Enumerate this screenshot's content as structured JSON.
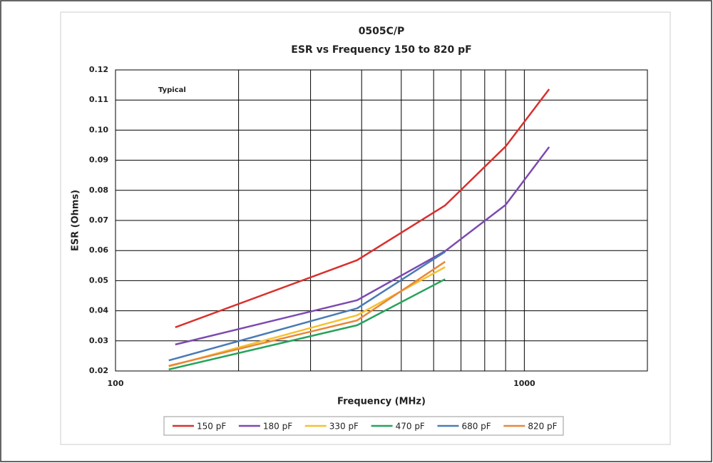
{
  "chart_data": {
    "type": "line",
    "title": "0505C/P",
    "subtitle": "ESR vs Frequency 150 to 820 pF",
    "annotation": "Typical",
    "x_label": "Frequency (MHz)",
    "y_label": "ESR (Ohms)",
    "log_x": true,
    "grid": true,
    "legend": "bottom",
    "xlim": [
      100,
      2000
    ],
    "xticks": [
      100,
      1000
    ],
    "xminor": [
      200,
      300,
      400,
      500,
      600,
      700,
      800,
      900
    ],
    "ylim": [
      0.02,
      0.12
    ],
    "yticks": [
      0.02,
      0.03,
      0.04,
      0.05,
      0.06,
      0.07,
      0.08,
      0.09,
      {
        "value": 0.1,
        "label": "0.10"
      },
      0.11,
      0.12
    ],
    "series": [
      {
        "name": "150 pF",
        "color": "#d9302c",
        "x": [
          140,
          390,
          640,
          900,
          1150
        ],
        "values": [
          0.0345,
          0.0568,
          0.075,
          0.0946,
          0.1136
        ]
      },
      {
        "name": "180 pF",
        "color": "#7c4ab0",
        "x": [
          140,
          390,
          640,
          900,
          1150
        ],
        "values": [
          0.0288,
          0.0435,
          0.0598,
          0.0752,
          0.0944
        ]
      },
      {
        "name": "330 pF",
        "color": "#f5c12e",
        "x": [
          135,
          390,
          640
        ],
        "values": [
          0.0215,
          0.0385,
          0.0545
        ]
      },
      {
        "name": "470 pF",
        "color": "#27a35a",
        "x": [
          135,
          390,
          640
        ],
        "values": [
          0.0205,
          0.0352,
          0.0505
        ]
      },
      {
        "name": "680 pF",
        "color": "#4a7bb5",
        "x": [
          135,
          390,
          640
        ],
        "values": [
          0.0235,
          0.0408,
          0.0596
        ]
      },
      {
        "name": "820 pF",
        "color": "#e8873a",
        "x": [
          135,
          390,
          640
        ],
        "values": [
          0.0217,
          0.0368,
          0.0563
        ]
      }
    ]
  }
}
